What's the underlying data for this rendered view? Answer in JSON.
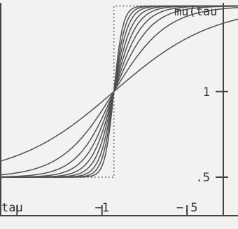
{
  "chart_data": {
    "type": "line",
    "title": "",
    "xlabel": "tau",
    "ylabel": "mu(tau",
    "xlim": [
      -1.6,
      -0.2
    ],
    "ylim": [
      0.275,
      1.535
    ],
    "x_ticks": [
      {
        "value": -1.5,
        "label": ""
      },
      {
        "value": -1.0,
        "label": "−1"
      },
      {
        "value": -0.5,
        "label": "−.5"
      }
    ],
    "y_ticks": [
      {
        "value": 1.0,
        "label": "1"
      },
      {
        "value": 0.5,
        "label": ".5"
      }
    ],
    "step_limit": {
      "style": "dotted",
      "points": [
        [
          -1.6,
          0.5
        ],
        [
          -0.93,
          0.5
        ],
        [
          -0.93,
          1.5
        ],
        [
          -0.2,
          1.5
        ]
      ]
    },
    "curves_through": {
      "x": -0.93,
      "y": 1.0
    },
    "curve_steepness": [
      1.7,
      3.2,
      4.6,
      6.0,
      7.6,
      9.5,
      12,
      15,
      19
    ],
    "axes": {
      "left": true,
      "right": true,
      "bottom": true,
      "top": false,
      "grid": false
    },
    "line_color": "#505050",
    "axis_color": "#444444"
  }
}
